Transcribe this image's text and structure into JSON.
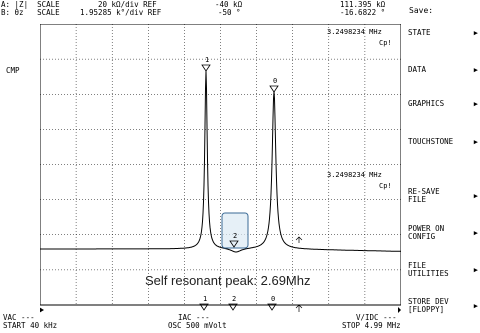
{
  "header": {
    "line1_left": "A: |Z|  SCALE",
    "line2_left": "B: θz   SCALE",
    "scaleA": "20 kΩ/div REF",
    "scaleB": "1.95285 k°/div REF",
    "refA": "-40 kΩ",
    "refB": "-50 °",
    "markerA": "111.395 kΩ",
    "markerB": "-16.6822 °"
  },
  "plot": {
    "cmp_label": "CMP",
    "freq_readout_top": "3.2498234 MHz",
    "cp_top": "Cp!",
    "freq_readout_mid": "3.2498234 MHz",
    "cp_mid": "Cp!",
    "marker_labels": [
      "1",
      "0",
      "2"
    ],
    "bottom_markers": [
      "1",
      "2",
      "0"
    ]
  },
  "footer": {
    "vac": "VAC ---",
    "start": "START 40 kHz",
    "iac": "IAC ---",
    "osc": "OSC 500 mVolt",
    "vidc": "V/IDC ---",
    "stop": "STOP 4.99 MHz"
  },
  "annotation": "Self resonant peak: 2.69Mhz",
  "menu": {
    "title": "Save:",
    "items": [
      {
        "label": "STATE",
        "arrow": "▶"
      },
      {
        "label": "DATA",
        "arrow": "▶"
      },
      {
        "label": "GRAPHICS",
        "arrow": "▶"
      },
      {
        "label": "TOUCHSTONE",
        "arrow": "▶"
      },
      {
        "label": "RE-SAVE\nFILE",
        "arrow": "▶"
      },
      {
        "label": "POWER ON\nCONFIG",
        "arrow": "▶"
      },
      {
        "label": "FILE\nUTILITIES",
        "arrow": "▶"
      },
      {
        "label": "STORE DEV\n[FLOPPY]",
        "arrow": "▶"
      }
    ]
  },
  "colors": {
    "trace": "#000000",
    "grid": "#000000",
    "highlight_fill": "#dbe9f4",
    "highlight_stroke": "#3a6a96"
  }
}
